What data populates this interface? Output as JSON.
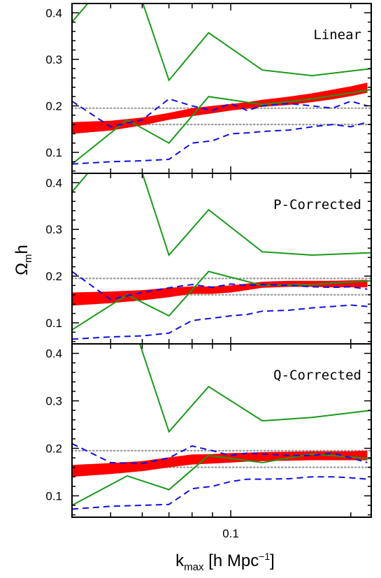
{
  "chart_data": {
    "type": "line",
    "ylabel": "Ωmh",
    "ylabel_parts": {
      "symbol": "Ω",
      "subscript": "m",
      "suffix": "h"
    },
    "xlabel": "kmax [h Mpc⁻¹]",
    "xlabel_parts": {
      "main": "k",
      "subscript": "max",
      "unit_open": "[h Mpc",
      "unit_sup": "−1",
      "unit_close": "]"
    },
    "x_scale": "log",
    "x_ticks": [
      0.1
    ],
    "x_tick_labels": [
      "0.1"
    ],
    "xlim": [
      0.04,
      0.225
    ],
    "ylim": [
      0.055,
      0.42
    ],
    "y_ticks": [
      0.1,
      0.2,
      0.3,
      0.4
    ],
    "y_tick_labels": [
      "0.1",
      "0.2",
      "0.3",
      "0.4"
    ],
    "x": [
      0.04,
      0.05,
      0.06,
      0.07,
      0.08,
      0.09,
      0.1,
      0.11,
      0.12,
      0.14,
      0.16,
      0.18,
      0.2,
      0.22
    ],
    "x_green": [
      0.04,
      0.055,
      0.07,
      0.088,
      0.12,
      0.16,
      0.225
    ],
    "colors": {
      "band": "#ff0000",
      "green": "#1a9a1a",
      "blue": "#1010e0",
      "reference": "#999999"
    },
    "panels": [
      {
        "name": "Linear",
        "band_lower": [
          0.14,
          0.147,
          0.158,
          0.17,
          0.178,
          0.184,
          0.19,
          0.194,
          0.198,
          0.202,
          0.208,
          0.214,
          0.221,
          0.228
        ],
        "band_upper": [
          0.165,
          0.168,
          0.175,
          0.185,
          0.195,
          0.2,
          0.204,
          0.208,
          0.213,
          0.22,
          0.227,
          0.235,
          0.242,
          0.25
        ],
        "green_upper": [
          0.38,
          0.52,
          0.255,
          0.357,
          0.277,
          0.265,
          0.28
        ],
        "green_lower": [
          0.075,
          0.17,
          0.12,
          0.22,
          0.203,
          0.215,
          0.235
        ],
        "blue_upper": [
          0.21,
          0.155,
          0.17,
          0.215,
          0.2,
          0.19,
          0.205,
          0.19,
          0.2,
          0.205,
          0.2,
          0.195,
          0.21,
          0.2
        ],
        "blue_lower": [
          0.075,
          0.08,
          0.082,
          0.085,
          0.12,
          0.125,
          0.14,
          0.142,
          0.145,
          0.148,
          0.155,
          0.16,
          0.155,
          0.165
        ],
        "reference_lines": [
          0.16,
          0.195
        ]
      },
      {
        "name": "P-Corrected",
        "band_lower": [
          0.137,
          0.142,
          0.148,
          0.155,
          0.162,
          0.162,
          0.165,
          0.17,
          0.175,
          0.177,
          0.177,
          0.176,
          0.176,
          0.176
        ],
        "band_upper": [
          0.165,
          0.167,
          0.17,
          0.175,
          0.178,
          0.178,
          0.18,
          0.184,
          0.188,
          0.19,
          0.19,
          0.19,
          0.191,
          0.192
        ],
        "green_upper": [
          0.38,
          0.52,
          0.245,
          0.342,
          0.252,
          0.245,
          0.25
        ],
        "green_lower": [
          0.085,
          0.16,
          0.115,
          0.21,
          0.18,
          0.182,
          0.19
        ],
        "blue_upper": [
          0.21,
          0.15,
          0.165,
          0.175,
          0.182,
          0.176,
          0.183,
          0.18,
          0.182,
          0.18,
          0.177,
          0.176,
          0.177,
          0.172
        ],
        "blue_lower": [
          0.065,
          0.07,
          0.072,
          0.078,
          0.105,
          0.11,
          0.115,
          0.118,
          0.125,
          0.127,
          0.132,
          0.135,
          0.138,
          0.135
        ],
        "reference_lines": [
          0.16,
          0.195
        ]
      },
      {
        "name": "Q-Corrected",
        "band_lower": [
          0.14,
          0.146,
          0.152,
          0.16,
          0.166,
          0.168,
          0.17,
          0.172,
          0.173,
          0.174,
          0.175,
          0.175,
          0.175,
          0.175
        ],
        "band_upper": [
          0.165,
          0.169,
          0.173,
          0.181,
          0.187,
          0.188,
          0.19,
          0.191,
          0.192,
          0.193,
          0.194,
          0.194,
          0.194,
          0.195
        ],
        "green_upper": [
          0.43,
          0.5,
          0.235,
          0.33,
          0.258,
          0.265,
          0.28
        ],
        "green_lower": [
          0.08,
          0.142,
          0.113,
          0.185,
          0.17,
          0.188,
          0.178
        ],
        "blue_upper": [
          0.21,
          0.17,
          0.168,
          0.18,
          0.205,
          0.195,
          0.185,
          0.19,
          0.188,
          0.185,
          0.185,
          0.19,
          0.18,
          0.17
        ],
        "blue_lower": [
          0.072,
          0.078,
          0.08,
          0.082,
          0.115,
          0.12,
          0.13,
          0.135,
          0.135,
          0.136,
          0.14,
          0.14,
          0.138,
          0.135
        ],
        "reference_lines": [
          0.16,
          0.195
        ]
      }
    ]
  }
}
